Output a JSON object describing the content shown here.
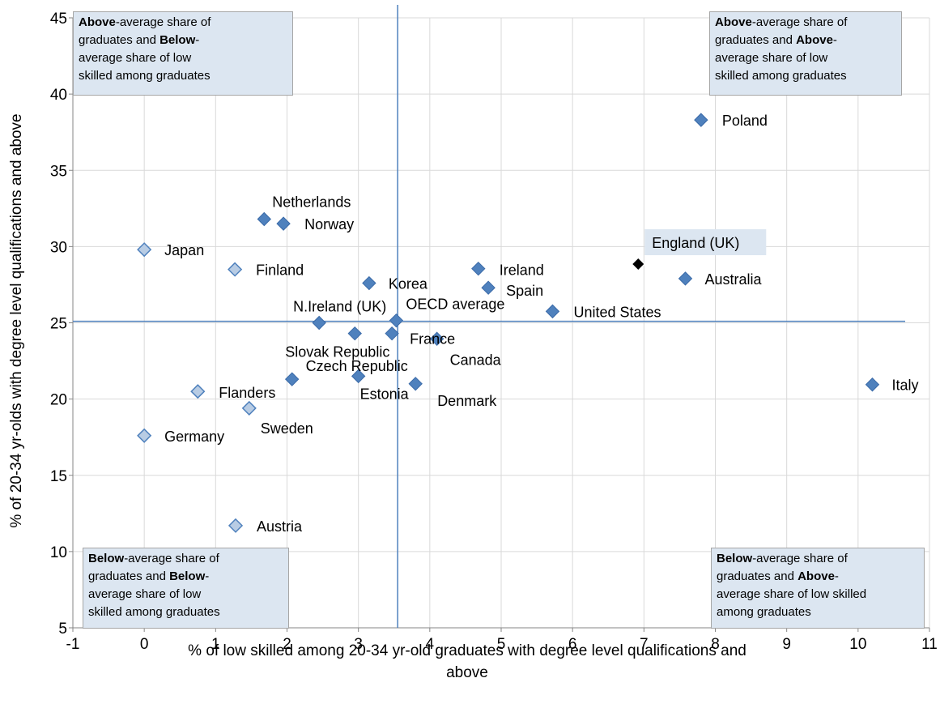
{
  "chart_data": {
    "type": "scatter",
    "xlabel": "% of low skilled among 20-34 yr-old graduates with degree level qualifications and above",
    "ylabel": "% of 20-34 yr-olds  with degree level qualifications and above",
    "xlim": [
      -1,
      11
    ],
    "ylim": [
      5,
      45
    ],
    "xticks": [
      -1,
      0,
      1,
      2,
      3,
      4,
      5,
      6,
      7,
      8,
      9,
      10,
      11
    ],
    "yticks": [
      5,
      10,
      15,
      20,
      25,
      30,
      35,
      40,
      45
    ],
    "grid": true,
    "reference_lines": {
      "x": 3.55,
      "y": 25.1
    },
    "colors": {
      "dark_marker": "#4f81bd",
      "light_marker": "#b8cce4",
      "highlight_marker": "#000000",
      "reference_line": "#4f81bd",
      "quadrant_fill": "#dce6f1"
    },
    "points": [
      {
        "name": "Poland",
        "x": 7.8,
        "y": 38.3,
        "style": "dark"
      },
      {
        "name": "England (UK)",
        "x": 6.92,
        "y": 28.85,
        "style": "highlight"
      },
      {
        "name": "Australia",
        "x": 7.58,
        "y": 27.9,
        "style": "dark"
      },
      {
        "name": "Italy",
        "x": 10.2,
        "y": 20.95,
        "style": "dark"
      },
      {
        "name": "United States",
        "x": 5.72,
        "y": 25.75,
        "style": "dark"
      },
      {
        "name": "Ireland",
        "x": 4.68,
        "y": 28.55,
        "style": "dark"
      },
      {
        "name": "Spain",
        "x": 4.82,
        "y": 27.3,
        "style": "dark"
      },
      {
        "name": "Netherlands",
        "x": 1.68,
        "y": 31.8,
        "style": "dark"
      },
      {
        "name": "Norway",
        "x": 1.95,
        "y": 31.5,
        "style": "dark"
      },
      {
        "name": "Korea",
        "x": 3.15,
        "y": 27.6,
        "style": "dark"
      },
      {
        "name": "OECD average",
        "x": 3.53,
        "y": 25.15,
        "style": "dark"
      },
      {
        "name": "N.Ireland (UK)",
        "x": 2.45,
        "y": 25.0,
        "style": "dark"
      },
      {
        "name": "France",
        "x": 3.47,
        "y": 24.3,
        "style": "dark"
      },
      {
        "name": "Slovak Republic",
        "x": 2.95,
        "y": 24.3,
        "style": "dark"
      },
      {
        "name": "Canada",
        "x": 4.1,
        "y": 23.95,
        "style": "dark"
      },
      {
        "name": "Czech Republic",
        "x": 2.07,
        "y": 21.3,
        "style": "dark"
      },
      {
        "name": "Estonia",
        "x": 3.0,
        "y": 21.5,
        "style": "dark"
      },
      {
        "name": "Denmark",
        "x": 3.8,
        "y": 21.0,
        "style": "dark"
      },
      {
        "name": "Japan",
        "x": 0.0,
        "y": 29.8,
        "style": "light"
      },
      {
        "name": "Finland",
        "x": 1.27,
        "y": 28.5,
        "style": "light"
      },
      {
        "name": "Flanders",
        "x": 0.75,
        "y": 20.5,
        "style": "light"
      },
      {
        "name": "Sweden",
        "x": 1.47,
        "y": 19.4,
        "style": "light"
      },
      {
        "name": "Germany",
        "x": 0.0,
        "y": 17.6,
        "style": "light"
      },
      {
        "name": "Austria",
        "x": 1.28,
        "y": 11.7,
        "style": "light"
      }
    ]
  },
  "quadrants": {
    "top_left": {
      "l1_bold": "Above",
      "l1_rest": "-average share of",
      "l2_pre": "graduates and ",
      "l2_bold": "Below",
      "l2_post": "-",
      "l3": "average share of low",
      "l4": "skilled among graduates"
    },
    "top_right": {
      "l1_bold": "Above",
      "l1_rest": "-average share of",
      "l2_pre": "graduates and ",
      "l2_bold": "Above",
      "l2_post": "-",
      "l3": "average share of low",
      "l4": "skilled among graduates"
    },
    "bottom_left": {
      "l1_bold": "Below",
      "l1_rest": "-average share of",
      "l2_pre": "graduates and ",
      "l2_bold": "Below",
      "l2_post": "-",
      "l3": "average share of low",
      "l4": "skilled among graduates"
    },
    "bottom_right": {
      "l1_bold": "Below",
      "l1_rest": "-average share of",
      "l2_pre": "graduates and ",
      "l2_bold": "Above",
      "l2_post": "-",
      "l3": "average share of low skilled",
      "l4": "among graduates"
    }
  }
}
